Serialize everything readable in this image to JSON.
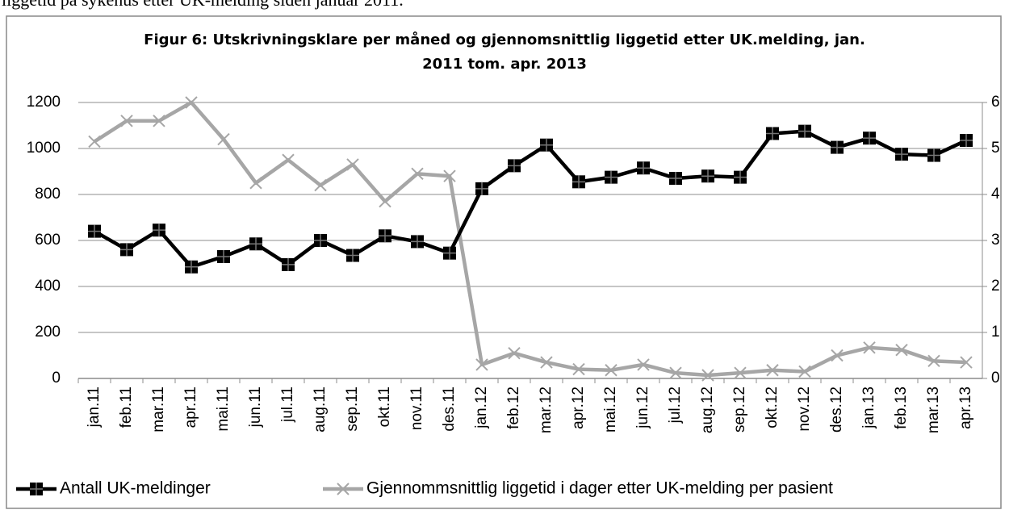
{
  "header_text": "liggetid på sykehus etter UK-melding siden januar 2011.",
  "chart_data": {
    "type": "line",
    "title": [
      "Figur 6: Utskrivningsklare per måned og gjennomsnittlig liggetid etter UK.melding, jan.",
      "2011 tom. apr. 2013"
    ],
    "categories": [
      "jan.11",
      "feb.11",
      "mar.11",
      "apr.11",
      "mai.11",
      "jun.11",
      "jul.11",
      "aug.11",
      "sep.11",
      "okt.11",
      "nov.11",
      "des.11",
      "jan.12",
      "feb.12",
      "mar.12",
      "apr.12",
      "mai.12",
      "jun.12",
      "jul.12",
      "aug.12",
      "sep.12",
      "okt.12",
      "nov.12",
      "des.12",
      "jan.13",
      "feb.13",
      "mar.13",
      "apr.13"
    ],
    "series": [
      {
        "name": "Antall UK-meldinger",
        "color": "#000000",
        "axis": "y",
        "marker": "square",
        "values": [
          640,
          560,
          645,
          485,
          530,
          585,
          495,
          600,
          535,
          620,
          595,
          545,
          825,
          925,
          1015,
          855,
          875,
          915,
          870,
          880,
          875,
          1065,
          1075,
          1005,
          1045,
          975,
          970,
          1035
        ]
      },
      {
        "name": "Gjennommsnittlig liggetid i dager etter UK-melding per pasient",
        "color": "#a6a6a6",
        "axis": "y2",
        "marker": "x",
        "values": [
          5.15,
          5.6,
          5.6,
          6.0,
          5.2,
          4.25,
          4.75,
          4.2,
          4.65,
          3.85,
          4.45,
          4.4,
          0.3,
          0.55,
          0.35,
          0.2,
          0.18,
          0.3,
          0.12,
          0.07,
          0.12,
          0.18,
          0.15,
          0.5,
          0.67,
          0.62,
          0.38,
          0.35
        ]
      }
    ],
    "ylim": [
      0,
      1200
    ],
    "yticks": [
      0,
      200,
      400,
      600,
      800,
      1000,
      1200
    ],
    "y2lim": [
      0,
      6
    ],
    "y2ticks": [
      0,
      1,
      2,
      3,
      4,
      5,
      6
    ],
    "grid": true,
    "legend": "bottom"
  }
}
